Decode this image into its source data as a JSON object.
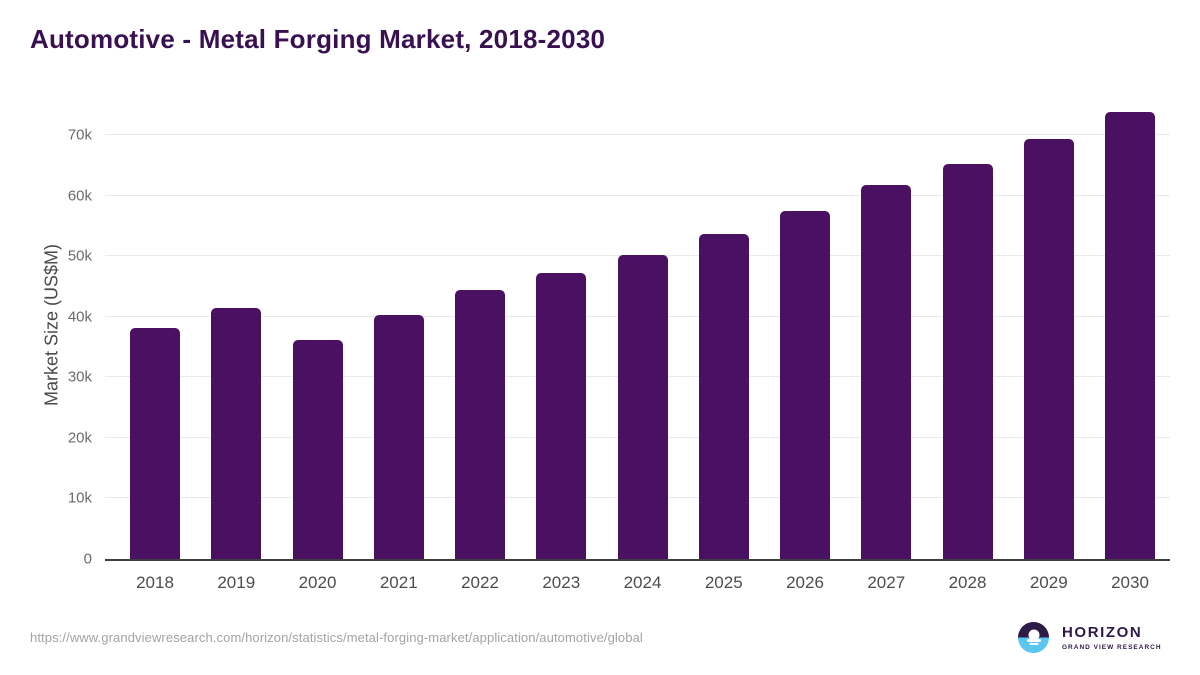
{
  "page": {
    "title": "Automotive - Metal Forging Market, 2018-2030",
    "source_url": "https://www.grandviewresearch.com/horizon/statistics/metal-forging-market/application/automotive/global"
  },
  "logo": {
    "name": "HORIZON",
    "subtitle": "GRAND VIEW RESEARCH"
  },
  "colors": {
    "bar": "#4A1061",
    "title": "#3A1150",
    "axis_line": "#3F3F3F",
    "gridline": "#E9E9E9",
    "tick_label": "#6B6B6B",
    "x_label": "#4D4D4D",
    "y_title": "#4A4A4A",
    "url_text": "#A3A3A3",
    "logo_purple": "#2E1A47",
    "logo_blue": "#5BC6F0"
  },
  "chart_data": {
    "type": "bar",
    "title": "Automotive - Metal Forging Market, 2018-2030",
    "categories": [
      "2018",
      "2019",
      "2020",
      "2021",
      "2022",
      "2023",
      "2024",
      "2025",
      "2026",
      "2027",
      "2028",
      "2029",
      "2030"
    ],
    "values": [
      38200,
      41500,
      36200,
      40300,
      44400,
      47200,
      50200,
      53700,
      57500,
      61700,
      65300,
      69300,
      73800
    ],
    "xlabel": "",
    "ylabel": "Market Size (US$M)",
    "ylim": [
      0,
      75780
    ],
    "yticks": [
      0,
      10000,
      20000,
      30000,
      40000,
      50000,
      60000,
      70000
    ],
    "ytick_labels": [
      "0",
      "10k",
      "20k",
      "30k",
      "40k",
      "50k",
      "60k",
      "70k"
    ],
    "grid": true,
    "legend": false,
    "units": "US$M"
  }
}
